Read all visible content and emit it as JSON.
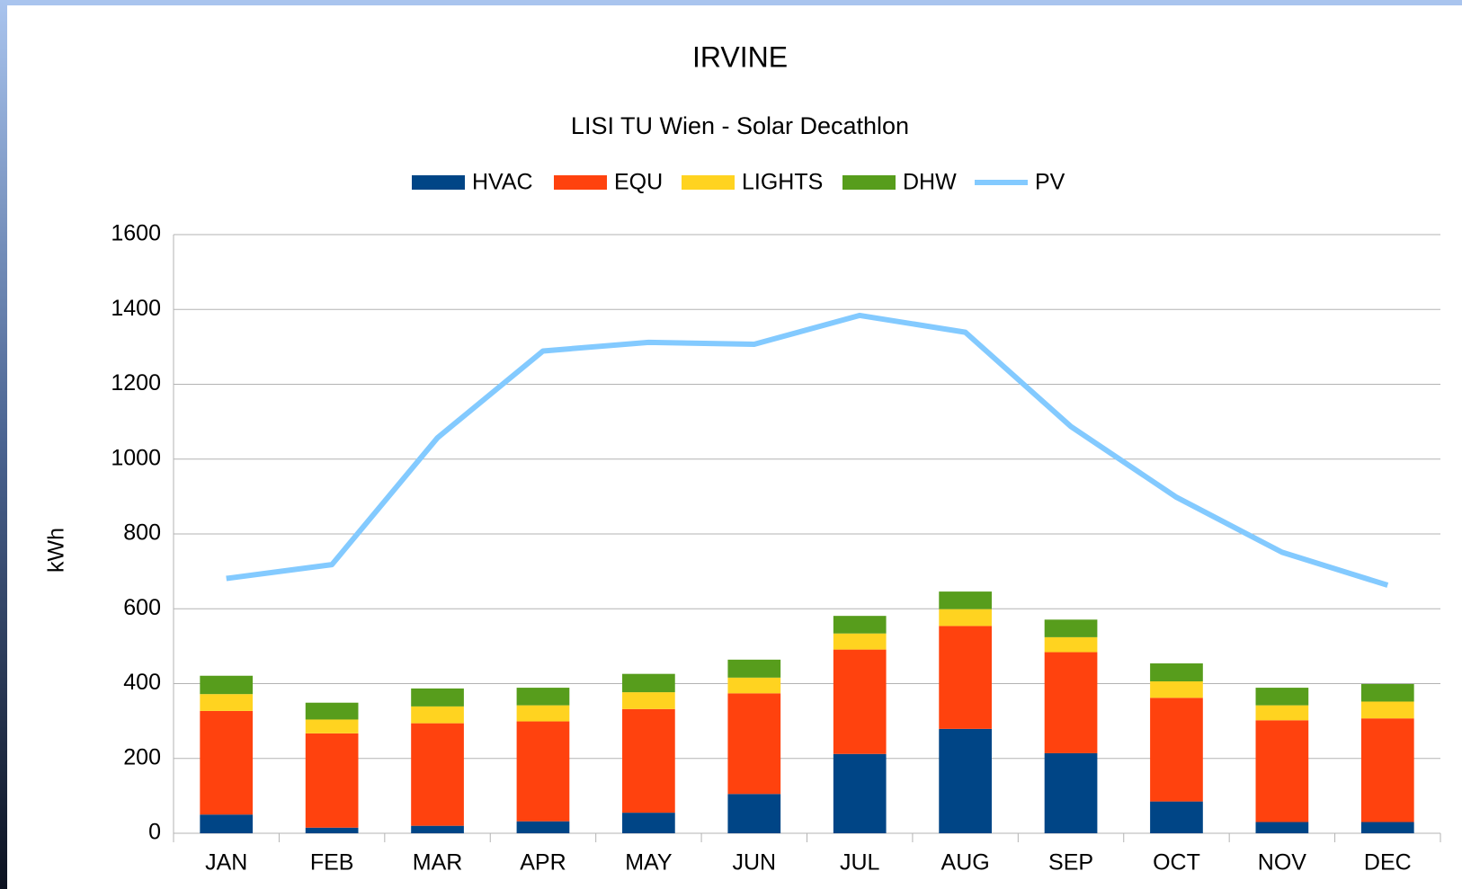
{
  "chart_data": {
    "type": "bar",
    "stacked": true,
    "title": "IRVINE",
    "subtitle": "LISI TU Wien - Solar Decathlon",
    "y_label": "kWh",
    "categories": [
      "JAN",
      "FEB",
      "MAR",
      "APR",
      "MAY",
      "JUN",
      "JUL",
      "AUG",
      "SEP",
      "OCT",
      "NOV",
      "DEC"
    ],
    "series": [
      {
        "name": "HVAC",
        "type": "bar",
        "color": "#004586",
        "values": [
          50,
          15,
          20,
          32,
          55,
          105,
          212,
          279,
          214,
          85,
          30,
          30
        ]
      },
      {
        "name": "EQU",
        "type": "bar",
        "color": "#ff420e",
        "values": [
          277,
          252,
          274,
          267,
          277,
          269,
          279,
          275,
          270,
          277,
          272,
          277
        ]
      },
      {
        "name": "LIGHTS",
        "type": "bar",
        "color": "#ffd320",
        "values": [
          45,
          37,
          45,
          43,
          45,
          42,
          43,
          45,
          40,
          44,
          40,
          45
        ]
      },
      {
        "name": "DHW",
        "type": "bar",
        "color": "#579d1c",
        "values": [
          49,
          45,
          48,
          47,
          49,
          48,
          47,
          47,
          47,
          48,
          47,
          47
        ]
      },
      {
        "name": "PV",
        "type": "line",
        "color": "#83caff",
        "values": [
          681,
          718,
          1057,
          1289,
          1312,
          1307,
          1384,
          1339,
          1087,
          898,
          751,
          663
        ]
      }
    ],
    "ylim": [
      0,
      1600
    ],
    "yticks": [
      0,
      200,
      400,
      600,
      800,
      1000,
      1200,
      1400,
      1600
    ],
    "grid": true,
    "legend": "top"
  }
}
